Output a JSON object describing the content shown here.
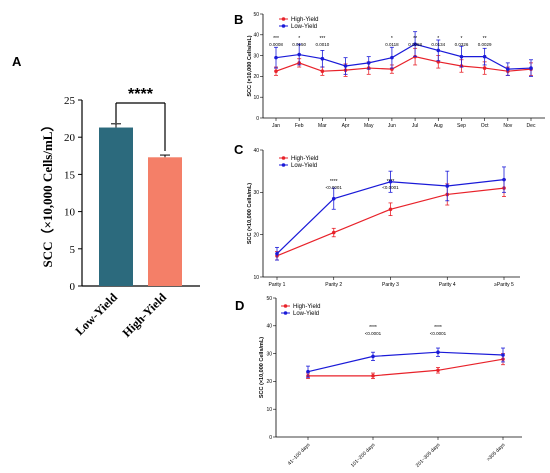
{
  "colors": {
    "high_yield": "#e8222a",
    "low_yield": "#1a1ad8",
    "bar_low": "#2c6a7d",
    "bar_high": "#f47f68",
    "axis": "#000000"
  },
  "chart_data": [
    {
      "id": "A",
      "panel_label": "A",
      "type": "bar",
      "categories": [
        "Low-Yield",
        "High-Yield"
      ],
      "values": [
        21.3,
        17.3
      ],
      "errors": [
        0.5,
        0.3
      ],
      "ylabel": "SCC（×10,000 Cells/mL）",
      "ylim": [
        0,
        25
      ],
      "yticks": [
        0,
        5,
        10,
        15,
        20,
        25
      ],
      "significance": "****"
    },
    {
      "id": "B",
      "panel_label": "B",
      "type": "line",
      "categories": [
        "Jan",
        "Feb",
        "Mar",
        "Apr",
        "May",
        "Jun",
        "Jul",
        "Aug",
        "Sep",
        "Oct",
        "Nov",
        "Dec"
      ],
      "ylabel": "SCC (×10,000 Cells/mL)",
      "ylim": [
        0,
        50
      ],
      "yticks": [
        0,
        10,
        20,
        30,
        40,
        50
      ],
      "legend": [
        "High-Yield",
        "Low-Yield"
      ],
      "series": [
        {
          "name": "High-Yield",
          "values": [
            22.5,
            26.5,
            22.5,
            23,
            24,
            23.5,
            29.5,
            27,
            25,
            24,
            22.5,
            23.5
          ],
          "errors": [
            2,
            2,
            2,
            3,
            3,
            2,
            4,
            3,
            3,
            3,
            2,
            3
          ]
        },
        {
          "name": "Low-Yield",
          "values": [
            29,
            30.5,
            28.5,
            25,
            26.5,
            29,
            35.5,
            32.5,
            29.5,
            29.5,
            23.5,
            24
          ],
          "errors": [
            5,
            5,
            4,
            4,
            3,
            5,
            6,
            5,
            5,
            4,
            3,
            4
          ]
        }
      ],
      "annotations": [
        {
          "index": 0,
          "stars": "***",
          "p": "0.0008"
        },
        {
          "index": 1,
          "stars": "*",
          "p": "0.0150"
        },
        {
          "index": 2,
          "stars": "***",
          "p": "0.0010"
        },
        {
          "index": 5,
          "stars": "*",
          "p": "0.0118"
        },
        {
          "index": 6,
          "stars": "**",
          "p": "0.0058"
        },
        {
          "index": 7,
          "stars": "*",
          "p": "0.0134"
        },
        {
          "index": 8,
          "stars": "*",
          "p": "0.0326"
        },
        {
          "index": 9,
          "stars": "**",
          "p": "0.0029"
        }
      ]
    },
    {
      "id": "C",
      "panel_label": "C",
      "type": "line",
      "categories": [
        "Parity 1",
        "Parity 2",
        "Parity 3",
        "Parity 4",
        "≥Parity 5"
      ],
      "ylabel": "SCC (×10,000 Cells/mL)",
      "ylim": [
        10,
        40
      ],
      "yticks": [
        10,
        20,
        30,
        40
      ],
      "legend": [
        "High-Yield",
        "Low-Yield"
      ],
      "series": [
        {
          "name": "High-Yield",
          "values": [
            15,
            20.5,
            26,
            29.5,
            31
          ],
          "errors": [
            1,
            1,
            1.5,
            2.5,
            2
          ]
        },
        {
          "name": "Low-Yield",
          "values": [
            15.5,
            28.5,
            32.5,
            31.5,
            33
          ],
          "errors": [
            1.5,
            2.5,
            2.5,
            3.5,
            3
          ]
        }
      ],
      "annotations": [
        {
          "index": 1,
          "stars": "****",
          "p": "<0.0001"
        },
        {
          "index": 2,
          "stars": "****",
          "p": "<0.0001"
        }
      ]
    },
    {
      "id": "D",
      "panel_label": "D",
      "type": "line",
      "categories": [
        "41~100 days",
        "101~200 days",
        "201~305 days",
        ">305 days"
      ],
      "ylabel": "SCC (×10,000 Cells/mL)",
      "ylim": [
        0,
        50
      ],
      "yticks": [
        0,
        10,
        20,
        30,
        40,
        50
      ],
      "legend": [
        "High-Yield",
        "Low-Yield"
      ],
      "series": [
        {
          "name": "High-Yield",
          "values": [
            22,
            22,
            24,
            28
          ],
          "errors": [
            1,
            1,
            1,
            2
          ]
        },
        {
          "name": "Low-Yield",
          "values": [
            23.5,
            29,
            30.5,
            29.5
          ],
          "errors": [
            2,
            1.5,
            1.5,
            2.5
          ]
        }
      ],
      "annotations": [
        {
          "index": 1,
          "stars": "****",
          "p": "<0.0001"
        },
        {
          "index": 2,
          "stars": "****",
          "p": "<0.0001"
        }
      ]
    }
  ]
}
